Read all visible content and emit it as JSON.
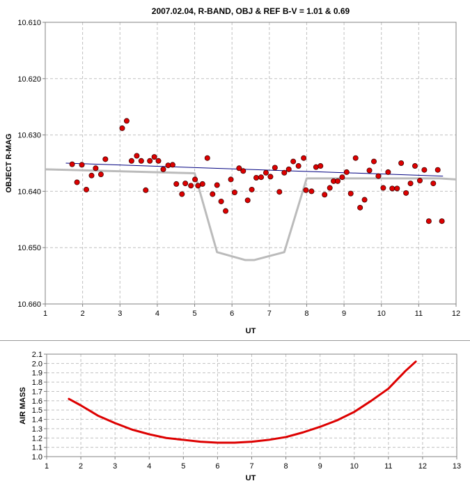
{
  "chart_data": [
    {
      "type": "scatter",
      "title": "2007.02.04, R-BAND, OBJ & REF B-V = 1.01 & 0.69",
      "xlabel": "UT",
      "ylabel": "OBJECT R-MAG",
      "xlim": [
        1,
        12
      ],
      "ylim": [
        10.61,
        10.66
      ],
      "y_inverted": true,
      "grid": true,
      "x_ticks": [
        "1",
        "2",
        "3",
        "4",
        "5",
        "6",
        "7",
        "8",
        "9",
        "10",
        "11",
        "12"
      ],
      "y_ticks": [
        "10.610",
        "10.620",
        "10.630",
        "10.640",
        "10.650",
        "10.660"
      ],
      "colors": {
        "points": "#dd0000",
        "trend": "#000080",
        "model": "#bbbbbb"
      },
      "series": [
        {
          "kind": "points",
          "x": [
            1.72,
            1.85,
            1.98,
            2.1,
            2.24,
            2.35,
            2.49,
            2.61,
            3.06,
            3.18,
            3.31,
            3.45,
            3.57,
            3.69,
            3.8,
            3.92,
            4.03,
            4.16,
            4.29,
            4.41,
            4.51,
            4.66,
            4.75,
            4.9,
            5.01,
            5.09,
            5.21,
            5.34,
            5.48,
            5.6,
            5.71,
            5.83,
            5.97,
            6.07,
            6.19,
            6.3,
            6.42,
            6.53,
            6.65,
            6.78,
            6.91,
            7.03,
            7.15,
            7.27,
            7.4,
            7.52,
            7.64,
            7.78,
            7.92,
            7.98,
            8.13,
            8.25,
            8.37,
            8.48,
            8.62,
            8.72,
            8.83,
            8.95,
            9.07,
            9.18,
            9.31,
            9.43,
            9.55,
            9.68,
            9.8,
            9.92,
            10.05,
            10.18,
            10.29,
            10.42,
            10.53,
            10.66,
            10.78,
            10.9,
            11.03,
            11.15,
            11.27,
            11.39,
            11.51,
            11.62
          ],
          "y": [
            10.6352,
            10.6384,
            10.6353,
            10.6397,
            10.6372,
            10.6359,
            10.637,
            10.6343,
            10.6288,
            10.6275,
            10.6346,
            10.6337,
            10.6346,
            10.6398,
            10.6346,
            10.6339,
            10.6346,
            10.6361,
            10.6354,
            10.6353,
            10.6387,
            10.6405,
            10.6386,
            10.639,
            10.6379,
            10.639,
            10.6387,
            10.6341,
            10.6405,
            10.6389,
            10.6418,
            10.6435,
            10.6379,
            10.6402,
            10.6359,
            10.6364,
            10.6416,
            10.6397,
            10.6376,
            10.6375,
            10.6367,
            10.6374,
            10.6358,
            10.6401,
            10.6367,
            10.6361,
            10.6347,
            10.6355,
            10.6341,
            10.6398,
            10.64,
            10.6357,
            10.6355,
            10.6406,
            10.6394,
            10.6382,
            10.6382,
            10.6375,
            10.6366,
            10.6404,
            10.6341,
            10.6429,
            10.6415,
            10.6363,
            10.6347,
            10.6373,
            10.6394,
            10.6366,
            10.6395,
            10.6395,
            10.635,
            10.6403,
            10.6386,
            10.6355,
            10.6381,
            10.6362,
            10.6453,
            10.6386,
            10.6362,
            10.6453
          ]
        },
        {
          "kind": "trend",
          "x": [
            1.55,
            11.65
          ],
          "y": [
            10.635,
            10.6373
          ]
        },
        {
          "kind": "model",
          "x": [
            1.0,
            5.0,
            5.6,
            6.35,
            6.6,
            7.4,
            8.0,
            11.55,
            12.0
          ],
          "y": [
            10.6361,
            10.6368,
            10.6508,
            10.6522,
            10.6522,
            10.6508,
            10.6377,
            10.6377,
            10.6379
          ]
        }
      ]
    },
    {
      "type": "line",
      "xlabel": "UT",
      "ylabel": "AIR MASS",
      "xlim": [
        1,
        13
      ],
      "ylim": [
        1.0,
        2.1
      ],
      "grid": true,
      "x_ticks": [
        "1",
        "2",
        "3",
        "4",
        "5",
        "6",
        "7",
        "8",
        "9",
        "10",
        "11",
        "12",
        "13"
      ],
      "y_ticks": [
        "1.0",
        "1.1",
        "1.2",
        "1.3",
        "1.4",
        "1.5",
        "1.6",
        "1.7",
        "1.8",
        "1.9",
        "2.0",
        "2.1"
      ],
      "colors": {
        "line": "#dd0000"
      },
      "series": [
        {
          "x": [
            1.65,
            2.0,
            2.5,
            3.0,
            3.5,
            4.0,
            4.5,
            5.0,
            5.5,
            6.0,
            6.5,
            7.0,
            7.5,
            8.0,
            8.5,
            9.0,
            9.5,
            10.0,
            10.5,
            11.0,
            11.5,
            11.8
          ],
          "y": [
            1.62,
            1.55,
            1.44,
            1.36,
            1.29,
            1.24,
            1.2,
            1.18,
            1.16,
            1.15,
            1.15,
            1.16,
            1.18,
            1.21,
            1.26,
            1.32,
            1.39,
            1.48,
            1.6,
            1.73,
            1.92,
            2.02
          ]
        }
      ]
    }
  ]
}
